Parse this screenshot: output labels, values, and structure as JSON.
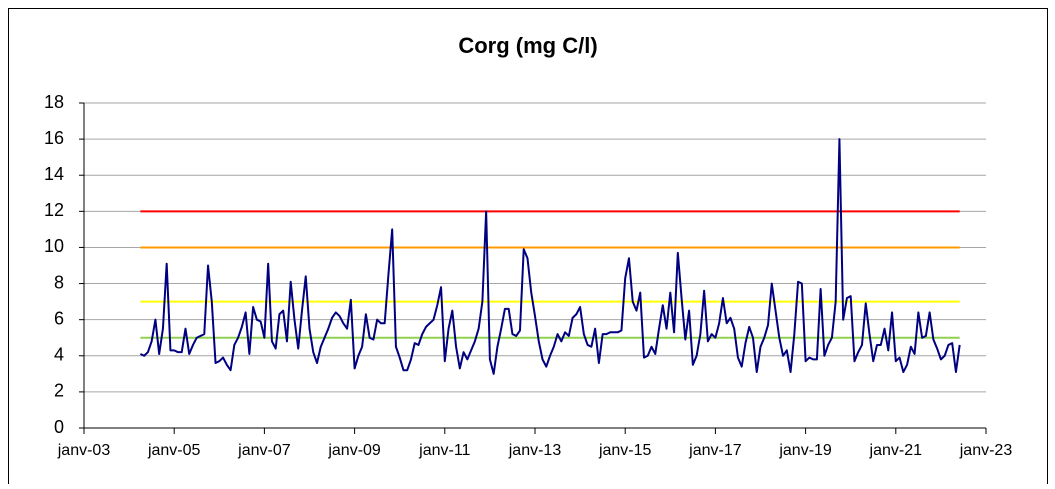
{
  "chart_data": {
    "type": "line",
    "title": "Corg (mg C/l)",
    "x": [
      "2004-04",
      "2004-05",
      "2004-06",
      "2004-07",
      "2004-08",
      "2004-09",
      "2004-10",
      "2004-11",
      "2004-12",
      "2005-01",
      "2005-02",
      "2005-03",
      "2005-04",
      "2005-05",
      "2005-06",
      "2005-07",
      "2005-08",
      "2005-09",
      "2005-10",
      "2005-11",
      "2005-12",
      "2006-01",
      "2006-02",
      "2006-03",
      "2006-04",
      "2006-05",
      "2006-06",
      "2006-07",
      "2006-08",
      "2006-09",
      "2006-10",
      "2006-11",
      "2006-12",
      "2007-01",
      "2007-02",
      "2007-03",
      "2007-04",
      "2007-05",
      "2007-06",
      "2007-07",
      "2007-08",
      "2007-09",
      "2007-10",
      "2007-11",
      "2007-12",
      "2008-01",
      "2008-02",
      "2008-03",
      "2008-04",
      "2008-05",
      "2008-06",
      "2008-07",
      "2008-08",
      "2008-09",
      "2008-10",
      "2008-11",
      "2008-12",
      "2009-01",
      "2009-02",
      "2009-03",
      "2009-04",
      "2009-05",
      "2009-06",
      "2009-07",
      "2009-08",
      "2009-09",
      "2009-10",
      "2009-11",
      "2009-12",
      "2010-01",
      "2010-02",
      "2010-03",
      "2010-04",
      "2010-05",
      "2010-06",
      "2010-07",
      "2010-08",
      "2010-09",
      "2010-10",
      "2010-11",
      "2010-12",
      "2011-01",
      "2011-02",
      "2011-03",
      "2011-04",
      "2011-05",
      "2011-06",
      "2011-07",
      "2011-08",
      "2011-09",
      "2011-10",
      "2011-11",
      "2011-12",
      "2012-01",
      "2012-02",
      "2012-03",
      "2012-04",
      "2012-05",
      "2012-06",
      "2012-07",
      "2012-08",
      "2012-09",
      "2012-10",
      "2012-11",
      "2012-12",
      "2013-01",
      "2013-02",
      "2013-03",
      "2013-04",
      "2013-05",
      "2013-06",
      "2013-07",
      "2013-08",
      "2013-09",
      "2013-10",
      "2013-11",
      "2013-12",
      "2014-01",
      "2014-02",
      "2014-03",
      "2014-04",
      "2014-05",
      "2014-06",
      "2014-07",
      "2014-08",
      "2014-09",
      "2014-10",
      "2014-11",
      "2014-12",
      "2015-01",
      "2015-02",
      "2015-03",
      "2015-04",
      "2015-05",
      "2015-06",
      "2015-07",
      "2015-08",
      "2015-09",
      "2015-10",
      "2015-11",
      "2015-12",
      "2016-01",
      "2016-02",
      "2016-03",
      "2016-04",
      "2016-05",
      "2016-06",
      "2016-07",
      "2016-08",
      "2016-09",
      "2016-10",
      "2016-11",
      "2016-12",
      "2017-01",
      "2017-02",
      "2017-03",
      "2017-04",
      "2017-05",
      "2017-06",
      "2017-07",
      "2017-08",
      "2017-09",
      "2017-10",
      "2017-11",
      "2017-12",
      "2018-01",
      "2018-02",
      "2018-03",
      "2018-04",
      "2018-05",
      "2018-06",
      "2018-07",
      "2018-08",
      "2018-09",
      "2018-10",
      "2018-11",
      "2018-12",
      "2019-01",
      "2019-02",
      "2019-03",
      "2019-04",
      "2019-05",
      "2019-06",
      "2019-07",
      "2019-08",
      "2019-09",
      "2019-10",
      "2019-11",
      "2019-12",
      "2020-01",
      "2020-02",
      "2020-03",
      "2020-04",
      "2020-05",
      "2020-06",
      "2020-07",
      "2020-08",
      "2020-09",
      "2020-10",
      "2020-11",
      "2020-12",
      "2021-01",
      "2021-02",
      "2021-03",
      "2021-04",
      "2021-05",
      "2021-06",
      "2021-07",
      "2021-08",
      "2021-09",
      "2021-10",
      "2021-11",
      "2021-12",
      "2022-01",
      "2022-02",
      "2022-03",
      "2022-04",
      "2022-05",
      "2022-06"
    ],
    "series": [
      {
        "color": "#000080",
        "values": [
          4.1,
          4.0,
          4.2,
          4.8,
          6.0,
          4.1,
          5.5,
          9.1,
          4.3,
          4.3,
          4.2,
          4.2,
          5.5,
          4.1,
          4.6,
          5.0,
          5.1,
          5.2,
          9.0,
          7.0,
          3.6,
          3.7,
          3.9,
          3.5,
          3.2,
          4.6,
          5.0,
          5.6,
          6.4,
          4.1,
          6.7,
          6.0,
          5.9,
          5.0,
          9.1,
          4.8,
          4.4,
          6.3,
          6.5,
          4.8,
          8.1,
          6.0,
          4.4,
          6.5,
          8.4,
          5.5,
          4.2,
          3.6,
          4.5,
          5.0,
          5.5,
          6.1,
          6.4,
          6.2,
          5.8,
          5.5,
          7.1,
          3.3,
          4.0,
          4.5,
          6.3,
          5.0,
          4.9,
          6.0,
          5.8,
          5.8,
          8.5,
          11.0,
          4.5,
          3.9,
          3.2,
          3.2,
          3.8,
          4.7,
          4.6,
          5.2,
          5.6,
          5.8,
          6.0,
          6.8,
          7.8,
          3.7,
          5.5,
          6.5,
          4.5,
          3.3,
          4.2,
          3.8,
          4.3,
          4.8,
          5.5,
          7.0,
          12.0,
          3.8,
          3.0,
          4.5,
          5.5,
          6.6,
          6.6,
          5.2,
          5.1,
          5.4,
          9.9,
          9.4,
          7.5,
          6.2,
          4.8,
          3.8,
          3.4,
          4.0,
          4.5,
          5.2,
          4.8,
          5.3,
          5.1,
          6.1,
          6.3,
          6.7,
          5.2,
          4.6,
          4.5,
          5.5,
          3.6,
          5.2,
          5.2,
          5.3,
          5.3,
          5.3,
          5.4,
          8.3,
          9.4,
          7.0,
          6.5,
          7.5,
          3.9,
          4.0,
          4.5,
          4.1,
          5.5,
          6.8,
          5.5,
          7.5,
          5.3,
          9.7,
          7.2,
          4.9,
          6.5,
          3.5,
          4.0,
          5.2,
          7.6,
          4.8,
          5.2,
          5.0,
          5.8,
          7.2,
          5.8,
          6.1,
          5.5,
          3.9,
          3.4,
          4.7,
          5.6,
          5.0,
          3.1,
          4.5,
          5.0,
          5.7,
          8.0,
          6.5,
          5.0,
          4.0,
          4.3,
          3.1,
          5.2,
          8.1,
          8.0,
          3.7,
          3.9,
          3.8,
          3.8,
          7.7,
          4.0,
          4.6,
          5.0,
          7.0,
          16.0,
          6.0,
          7.2,
          7.3,
          3.7,
          4.2,
          4.6,
          6.9,
          5.2,
          3.7,
          4.6,
          4.6,
          5.5,
          4.3,
          6.4,
          3.7,
          3.9,
          3.1,
          3.5,
          4.5,
          4.1,
          6.4,
          5.0,
          5.1,
          6.4,
          4.9,
          4.4,
          3.8,
          4.0,
          4.6,
          4.7,
          3.1,
          4.6
        ]
      }
    ],
    "reference_lines": [
      {
        "value": 12,
        "color": "#ff0000"
      },
      {
        "value": 10,
        "color": "#ff9900"
      },
      {
        "value": 7,
        "color": "#ffff00"
      },
      {
        "value": 5,
        "color": "#92d050"
      }
    ],
    "xlim": [
      "2003-01",
      "2023-01"
    ],
    "xticks": [
      {
        "value": "2003-01",
        "label": "janv-03"
      },
      {
        "value": "2005-01",
        "label": "janv-05"
      },
      {
        "value": "2007-01",
        "label": "janv-07"
      },
      {
        "value": "2009-01",
        "label": "janv-09"
      },
      {
        "value": "2011-01",
        "label": "janv-11"
      },
      {
        "value": "2013-01",
        "label": "janv-13"
      },
      {
        "value": "2015-01",
        "label": "janv-15"
      },
      {
        "value": "2017-01",
        "label": "janv-17"
      },
      {
        "value": "2019-01",
        "label": "janv-19"
      },
      {
        "value": "2021-01",
        "label": "janv-21"
      },
      {
        "value": "2023-01",
        "label": "janv-23"
      }
    ],
    "ylim": [
      0,
      18
    ],
    "yticks": [
      0,
      2,
      4,
      6,
      8,
      10,
      12,
      14,
      16,
      18
    ],
    "grid": true
  }
}
